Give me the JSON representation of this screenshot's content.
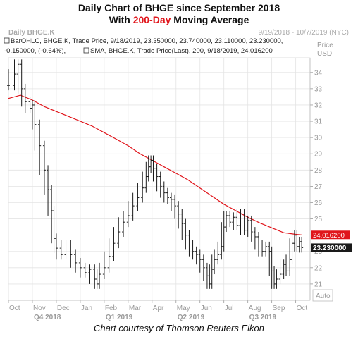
{
  "header": {
    "title_line1": "Daily Chart of BHGE since September 2018",
    "title_line2_pre": "With ",
    "title_line2_highlight": "200-Day",
    "title_line2_post": " Moving Average",
    "highlight_color": "#e0151b"
  },
  "chart_header": {
    "name": "Daily BHGE.K",
    "range": "9/19/2018 - 10/7/2019 (NYC)",
    "legend_ohlc_line1": "BarOHLC, BHGE.K, Trade Price, 9/18/2019, 23.350000, 23.740000, 23.110000, 23.230000,",
    "legend_ohlc_line2_pre": "-0.150000, (-0.64%),",
    "legend_sma": "SMA, BHGE.K, Trade Price(Last), 200, 9/18/2019, 24.016200",
    "price_label": "Price",
    "currency_label": "USD",
    "auto_label": "Auto"
  },
  "caption": "Chart courtesy of Thomson Reuters Eikon",
  "chart_data": {
    "type": "line",
    "ylim": [
      20,
      34.9
    ],
    "y_ticks": [
      21,
      22,
      23,
      24,
      25,
      26,
      27,
      28,
      29,
      30,
      31,
      32,
      33,
      34
    ],
    "x_month_labels": [
      "Oct",
      "Nov",
      "Dec",
      "Jan",
      "Feb",
      "Mar",
      "Apr",
      "May",
      "Jun",
      "Jul",
      "Aug",
      "Sep",
      "Oct"
    ],
    "x_quarter_labels": [
      "Q4 2018",
      "Q1 2019",
      "Q2 2019",
      "Q3 2019"
    ],
    "x_range_months": [
      0,
      12.6
    ],
    "price_series": {
      "name": "BarOHLC",
      "color": "#1a1a1a",
      "points": [
        [
          0.0,
          33.2
        ],
        [
          0.25,
          33.9
        ],
        [
          0.4,
          34.5
        ],
        [
          0.55,
          33.0
        ],
        [
          0.7,
          32.2
        ],
        [
          0.9,
          31.8
        ],
        [
          1.0,
          32.0
        ],
        [
          1.1,
          30.8
        ],
        [
          1.3,
          29.5
        ],
        [
          1.5,
          28.0
        ],
        [
          1.65,
          26.8
        ],
        [
          1.8,
          25.5
        ],
        [
          1.9,
          23.8
        ],
        [
          2.0,
          23.2
        ],
        [
          2.2,
          22.8
        ],
        [
          2.4,
          23.4
        ],
        [
          2.6,
          22.8
        ],
        [
          2.8,
          22.3
        ],
        [
          3.0,
          22.0
        ],
        [
          3.2,
          21.7
        ],
        [
          3.4,
          21.9
        ],
        [
          3.6,
          21.3
        ],
        [
          3.7,
          21.0
        ],
        [
          3.8,
          21.6
        ],
        [
          4.0,
          22.0
        ],
        [
          4.2,
          22.7
        ],
        [
          4.4,
          23.5
        ],
        [
          4.6,
          24.2
        ],
        [
          4.8,
          24.8
        ],
        [
          5.0,
          25.2
        ],
        [
          5.2,
          25.8
        ],
        [
          5.4,
          26.3
        ],
        [
          5.6,
          26.9
        ],
        [
          5.75,
          27.6
        ],
        [
          5.85,
          28.2
        ],
        [
          5.95,
          28.6
        ],
        [
          6.05,
          28.1
        ],
        [
          6.2,
          27.6
        ],
        [
          6.35,
          27.0
        ],
        [
          6.5,
          26.6
        ],
        [
          6.65,
          26.3
        ],
        [
          6.8,
          26.2
        ],
        [
          6.95,
          25.8
        ],
        [
          7.1,
          25.3
        ],
        [
          7.25,
          24.7
        ],
        [
          7.4,
          24.0
        ],
        [
          7.55,
          23.4
        ],
        [
          7.7,
          23.0
        ],
        [
          7.85,
          22.8
        ],
        [
          8.0,
          22.5
        ],
        [
          8.15,
          22.0
        ],
        [
          8.3,
          21.5
        ],
        [
          8.4,
          21.0
        ],
        [
          8.5,
          21.9
        ],
        [
          8.6,
          22.5
        ],
        [
          8.75,
          22.8
        ],
        [
          8.9,
          23.3
        ],
        [
          9.0,
          24.5
        ],
        [
          9.1,
          25.2
        ],
        [
          9.25,
          24.8
        ],
        [
          9.4,
          25.1
        ],
        [
          9.55,
          24.6
        ],
        [
          9.7,
          25.3
        ],
        [
          9.85,
          24.3
        ],
        [
          10.0,
          24.9
        ],
        [
          10.15,
          24.2
        ],
        [
          10.3,
          23.9
        ],
        [
          10.45,
          23.4
        ],
        [
          10.6,
          23.0
        ],
        [
          10.75,
          23.3
        ],
        [
          10.9,
          23.0
        ],
        [
          11.0,
          21.8
        ],
        [
          11.1,
          21.0
        ],
        [
          11.2,
          21.3
        ],
        [
          11.35,
          21.6
        ],
        [
          11.5,
          22.2
        ],
        [
          11.6,
          21.8
        ],
        [
          11.75,
          22.5
        ],
        [
          11.85,
          23.5
        ],
        [
          11.95,
          24.0
        ],
        [
          12.05,
          23.3
        ],
        [
          12.15,
          23.6
        ],
        [
          12.25,
          23.23
        ]
      ]
    },
    "sma_series": {
      "name": "SMA 200",
      "color": "#e0151b",
      "points": [
        [
          0.0,
          32.4
        ],
        [
          0.5,
          32.6
        ],
        [
          1.0,
          32.3
        ],
        [
          1.5,
          31.9
        ],
        [
          2.0,
          31.6
        ],
        [
          2.5,
          31.3
        ],
        [
          3.0,
          31.0
        ],
        [
          3.5,
          30.7
        ],
        [
          4.0,
          30.3
        ],
        [
          4.5,
          29.9
        ],
        [
          5.0,
          29.5
        ],
        [
          5.5,
          29.0
        ],
        [
          6.0,
          28.6
        ],
        [
          6.5,
          28.2
        ],
        [
          7.0,
          27.8
        ],
        [
          7.5,
          27.4
        ],
        [
          8.0,
          26.9
        ],
        [
          8.5,
          26.4
        ],
        [
          9.0,
          25.9
        ],
        [
          9.5,
          25.5
        ],
        [
          10.0,
          25.1
        ],
        [
          10.5,
          24.75
        ],
        [
          11.0,
          24.45
        ],
        [
          11.5,
          24.15
        ],
        [
          12.0,
          24.05
        ],
        [
          12.25,
          24.0162
        ]
      ]
    },
    "last_price_label": "23.230000",
    "sma_label": "24.016200",
    "last_price_value": 23.23,
    "sma_value": 24.0162,
    "sma_badge_color": "#e0151b",
    "grid": true
  }
}
